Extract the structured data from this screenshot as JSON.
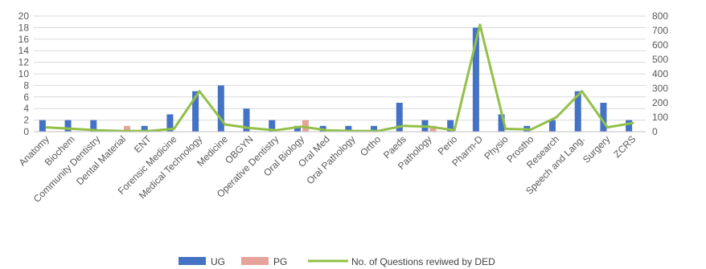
{
  "chart_data": {
    "type": "bar",
    "categories": [
      "Anatomy",
      "Biochem",
      "Community Dentistry",
      "Dental Material",
      "ENT",
      "Forensic Medicine",
      "Medical Technology",
      "Medicine",
      "OBGYN",
      "Operative Dentistry",
      "Oral Biology",
      "Oral Med",
      "Oral Pathology",
      "Ortho",
      "Paeds",
      "Pathology",
      "Perio",
      "Pharm-D",
      "Physio",
      "Prostho",
      "Research",
      "Speech and Lang.",
      "Surgery",
      "ZCRS"
    ],
    "series": [
      {
        "name": "UG",
        "type": "bar",
        "axis": "left",
        "color": "#4472C4",
        "values": [
          2,
          2,
          2,
          0,
          1,
          3,
          7,
          8,
          4,
          2,
          1,
          1,
          1,
          1,
          5,
          2,
          2,
          18,
          3,
          1,
          2,
          7,
          5,
          2
        ]
      },
      {
        "name": "PG",
        "type": "bar",
        "axis": "left",
        "color": "#E6A39A",
        "values": [
          0,
          0,
          0,
          1,
          0,
          0,
          0,
          0,
          0,
          0,
          2,
          0,
          0,
          0,
          0,
          1,
          0,
          0,
          0,
          0,
          0,
          0,
          0,
          0
        ]
      },
      {
        "name": "No. of Questions reviwed by DED",
        "type": "line",
        "axis": "right",
        "color": "#92C047",
        "values": [
          30,
          20,
          10,
          5,
          5,
          20,
          280,
          50,
          25,
          10,
          35,
          10,
          5,
          5,
          40,
          35,
          10,
          740,
          20,
          15,
          100,
          280,
          30,
          60
        ]
      }
    ],
    "yticks_left": [
      "0",
      "2",
      "4",
      "6",
      "8",
      "10",
      "12",
      "14",
      "16",
      "18",
      "20"
    ],
    "yticks_right": [
      "0",
      "100",
      "200",
      "300",
      "400",
      "500",
      "600",
      "700",
      "800"
    ],
    "ylim_left": [
      0,
      20
    ],
    "ylim_right": [
      0,
      800
    ],
    "legend_position": "bottom",
    "grid": true
  }
}
